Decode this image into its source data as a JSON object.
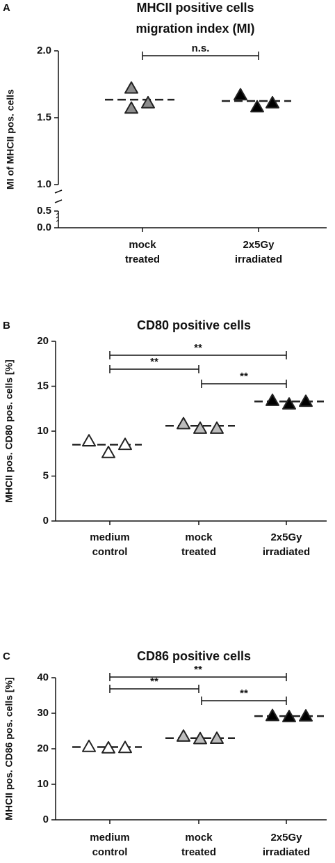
{
  "chart_data": [
    {
      "type": "scatter",
      "panel": "A",
      "title": [
        "MHCII positive cells",
        "migration index (MI)"
      ],
      "y_label": "MI of MHCII pos. cells",
      "categories": [
        [
          "mock",
          "treated"
        ],
        [
          "2x5Gy",
          "irradiated"
        ]
      ],
      "values": [
        [
          1.72,
          1.57,
          1.61
        ],
        [
          1.67,
          1.58,
          1.61
        ]
      ],
      "means": [
        1.635,
        1.625
      ],
      "colors": [
        "#8c8c8c",
        "#000000"
      ],
      "ylim": [
        0,
        2
      ],
      "ybreak": [
        0.5,
        1
      ],
      "yticks": [
        {
          "value": 0,
          "label": "0.0"
        },
        0.5,
        {
          "value": 1,
          "label": "1.0"
        },
        1.5,
        {
          "value": 2,
          "label": "2.0"
        }
      ],
      "comparisons": [
        {
          "from": 0,
          "to": 1,
          "label": "n.s."
        }
      ]
    },
    {
      "type": "scatter",
      "panel": "B",
      "title": [
        "CD80 positive cells"
      ],
      "y_label": "MHCII pos. CD80  pos. cells [%]",
      "categories": [
        [
          "medium",
          "control"
        ],
        [
          "mock",
          "treated"
        ],
        [
          "2x5Gy",
          "irradiated"
        ]
      ],
      "values": [
        [
          8.9,
          7.6,
          8.5
        ],
        [
          10.8,
          10.3,
          10.3
        ],
        [
          13.4,
          13.0,
          13.3
        ]
      ],
      "means": [
        8.5,
        10.6,
        13.3
      ],
      "colors": [
        "#ffffff",
        "#bdbdbd",
        "#000000"
      ],
      "ylim": [
        0,
        20
      ],
      "yticks": [
        0,
        5,
        10,
        15,
        20
      ],
      "comparisons": [
        {
          "from": 0,
          "to": 2,
          "label": "**"
        },
        {
          "from": 0,
          "to": 1,
          "label": "**"
        },
        {
          "from": 1,
          "to": 2,
          "label": "**"
        }
      ]
    },
    {
      "type": "scatter",
      "panel": "C",
      "title": [
        "CD86 positive cells"
      ],
      "y_label": "MHCII pos. CD86  pos. cells [%]",
      "categories": [
        [
          "medium",
          "control"
        ],
        [
          "mock",
          "treated"
        ],
        [
          "2x5Gy",
          "irradiated"
        ]
      ],
      "values": [
        [
          20.6,
          20.2,
          20.3
        ],
        [
          23.5,
          22.8,
          22.9
        ],
        [
          29.3,
          29.0,
          29.2
        ]
      ],
      "means": [
        20.5,
        23.0,
        29.2
      ],
      "colors": [
        "#ffffff",
        "#bdbdbd",
        "#000000"
      ],
      "ylim": [
        0,
        40
      ],
      "yticks": [
        0,
        10,
        20,
        30,
        40
      ],
      "comparisons": [
        {
          "from": 0,
          "to": 2,
          "label": "**"
        },
        {
          "from": 0,
          "to": 1,
          "label": "**"
        },
        {
          "from": 1,
          "to": 2,
          "label": "**"
        }
      ]
    }
  ]
}
